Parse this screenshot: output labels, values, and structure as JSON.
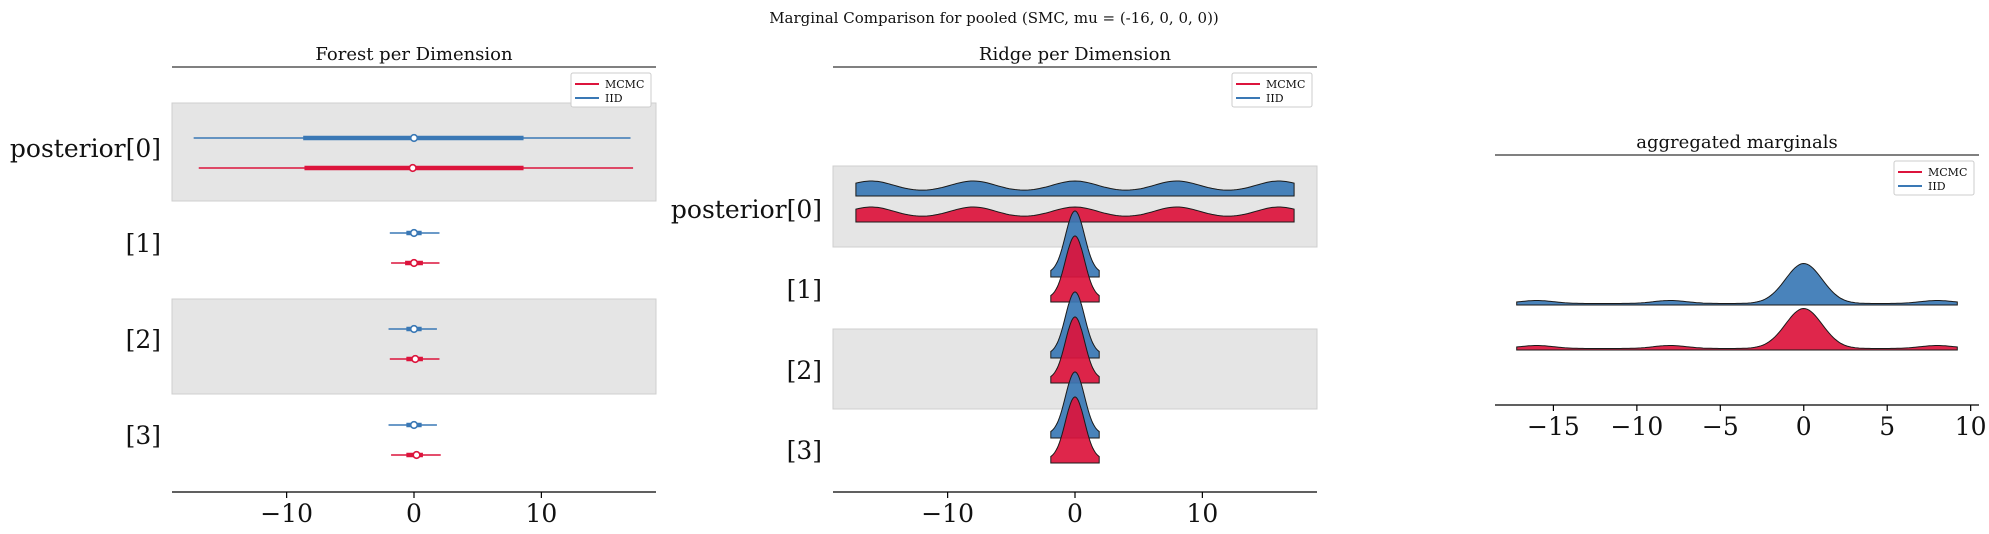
{
  "figure": {
    "suptitle": "Marginal Comparison for pooled (SMC, mu = (-16, 0, 0, 0))"
  },
  "colors": {
    "mcmc": "#dc143c",
    "iid": "#3a78b5",
    "band": "#e5e5e5"
  },
  "chart_data": [
    {
      "type": "forest",
      "title": "Forest per Dimension",
      "ylabels": [
        "posterior[0]",
        "[1]",
        "[2]",
        "[3]"
      ],
      "xlim": [
        -19,
        19
      ],
      "xticks": [
        -10,
        0,
        10
      ],
      "legend": {
        "position": "top-right",
        "entries": [
          "MCMC",
          "IID"
        ]
      },
      "series": [
        {
          "name": "IID",
          "rows": [
            {
              "mean": 0.0,
              "hdi_outer": [
                -17.3,
                17.0
              ],
              "hdi_inner": [
                -8.7,
                8.6
              ]
            },
            {
              "mean": 0.0,
              "hdi_outer": [
                -1.9,
                2.0
              ],
              "hdi_inner": [
                -0.6,
                0.6
              ]
            },
            {
              "mean": 0.0,
              "hdi_outer": [
                -2.0,
                1.8
              ],
              "hdi_inner": [
                -0.6,
                0.6
              ]
            },
            {
              "mean": 0.0,
              "hdi_outer": [
                -2.0,
                1.8
              ],
              "hdi_inner": [
                -0.6,
                0.6
              ]
            }
          ]
        },
        {
          "name": "MCMC",
          "rows": [
            {
              "mean": -0.1,
              "hdi_outer": [
                -16.9,
                17.2
              ],
              "hdi_inner": [
                -8.6,
                8.6
              ]
            },
            {
              "mean": 0.0,
              "hdi_outer": [
                -1.8,
                2.0
              ],
              "hdi_inner": [
                -0.7,
                0.7
              ]
            },
            {
              "mean": 0.1,
              "hdi_outer": [
                -1.9,
                2.0
              ],
              "hdi_inner": [
                -0.6,
                0.7
              ]
            },
            {
              "mean": 0.2,
              "hdi_outer": [
                -1.8,
                2.1
              ],
              "hdi_inner": [
                -0.6,
                0.7
              ]
            }
          ]
        }
      ]
    },
    {
      "type": "ridgeline",
      "title": "Ridge per Dimension",
      "ylabels": [
        "posterior[0]",
        "[1]",
        "[2]",
        "[3]"
      ],
      "xlim": [
        -19,
        19
      ],
      "xticks": [
        -10,
        0,
        10
      ],
      "legend": {
        "position": "top-right",
        "entries": [
          "MCMC",
          "IID"
        ]
      },
      "series": [
        {
          "name": "IID",
          "rows": [
            {
              "kind": "multimodal",
              "range": [
                -17.2,
                17.2
              ],
              "modes": [
                -16,
                -8,
                0,
                8,
                16
              ]
            },
            {
              "kind": "peak",
              "range": [
                -1.9,
                1.9
              ],
              "center": 0.0
            },
            {
              "kind": "peak",
              "range": [
                -1.9,
                1.9
              ],
              "center": 0.0
            },
            {
              "kind": "peak",
              "range": [
                -1.9,
                1.9
              ],
              "center": 0.0
            }
          ]
        },
        {
          "name": "MCMC",
          "rows": [
            {
              "kind": "multimodal",
              "range": [
                -17.2,
                17.2
              ],
              "modes": [
                -16,
                -8,
                0,
                8,
                16
              ]
            },
            {
              "kind": "peak",
              "range": [
                -1.9,
                1.9
              ],
              "center": 0.0
            },
            {
              "kind": "peak",
              "range": [
                -1.9,
                1.9
              ],
              "center": 0.0
            },
            {
              "kind": "peak",
              "range": [
                -1.9,
                1.9
              ],
              "center": 0.0
            }
          ]
        }
      ]
    },
    {
      "type": "ridgeline",
      "title": "aggregated marginals",
      "xlim": [
        -18.5,
        10.5
      ],
      "xticks": [
        -15,
        -10,
        -5,
        0,
        5,
        10
      ],
      "legend": {
        "position": "top-right",
        "entries": [
          "MCMC",
          "IID"
        ]
      },
      "series": [
        {
          "name": "IID",
          "range": [
            -17.2,
            9.2
          ],
          "main_mode": 0,
          "minor_modes": [
            -16,
            -8,
            8
          ]
        },
        {
          "name": "MCMC",
          "range": [
            -17.2,
            9.2
          ],
          "main_mode": 0,
          "minor_modes": [
            -16,
            -8,
            8
          ]
        }
      ]
    }
  ]
}
